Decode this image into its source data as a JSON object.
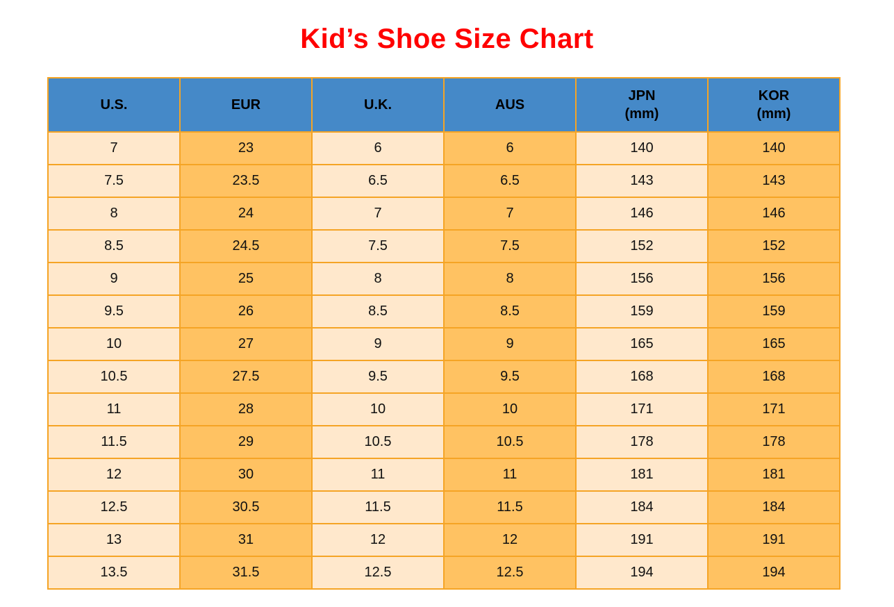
{
  "title": "Kid’s Shoe Size Chart",
  "colors": {
    "title": "#FF0000",
    "header_bg": "#4589C8",
    "column_light": "#FFE8CC",
    "column_dark": "#FFC262",
    "border": "#F5A425",
    "text": "#111111"
  },
  "chart_data": {
    "type": "table",
    "title": "Kid’s Shoe Size Chart",
    "columns": [
      {
        "id": "us",
        "label": "U.S.",
        "sublabel": "",
        "shade": "light"
      },
      {
        "id": "eur",
        "label": "EUR",
        "sublabel": "",
        "shade": "dark"
      },
      {
        "id": "uk",
        "label": "U.K.",
        "sublabel": "",
        "shade": "light"
      },
      {
        "id": "aus",
        "label": "AUS",
        "sublabel": "",
        "shade": "dark"
      },
      {
        "id": "jpn",
        "label": "JPN",
        "sublabel": "(mm)",
        "shade": "light"
      },
      {
        "id": "kor",
        "label": "KOR",
        "sublabel": "(mm)",
        "shade": "dark"
      }
    ],
    "rows": [
      [
        "7",
        "23",
        "6",
        "6",
        "140",
        "140"
      ],
      [
        "7.5",
        "23.5",
        "6.5",
        "6.5",
        "143",
        "143"
      ],
      [
        "8",
        "24",
        "7",
        "7",
        "146",
        "146"
      ],
      [
        "8.5",
        "24.5",
        "7.5",
        "7.5",
        "152",
        "152"
      ],
      [
        "9",
        "25",
        "8",
        "8",
        "156",
        "156"
      ],
      [
        "9.5",
        "26",
        "8.5",
        "8.5",
        "159",
        "159"
      ],
      [
        "10",
        "27",
        "9",
        "9",
        "165",
        "165"
      ],
      [
        "10.5",
        "27.5",
        "9.5",
        "9.5",
        "168",
        "168"
      ],
      [
        "11",
        "28",
        "10",
        "10",
        "171",
        "171"
      ],
      [
        "11.5",
        "29",
        "10.5",
        "10.5",
        "178",
        "178"
      ],
      [
        "12",
        "30",
        "11",
        "11",
        "181",
        "181"
      ],
      [
        "12.5",
        "30.5",
        "11.5",
        "11.5",
        "184",
        "184"
      ],
      [
        "13",
        "31",
        "12",
        "12",
        "191",
        "191"
      ],
      [
        "13.5",
        "31.5",
        "12.5",
        "12.5",
        "194",
        "194"
      ]
    ]
  }
}
